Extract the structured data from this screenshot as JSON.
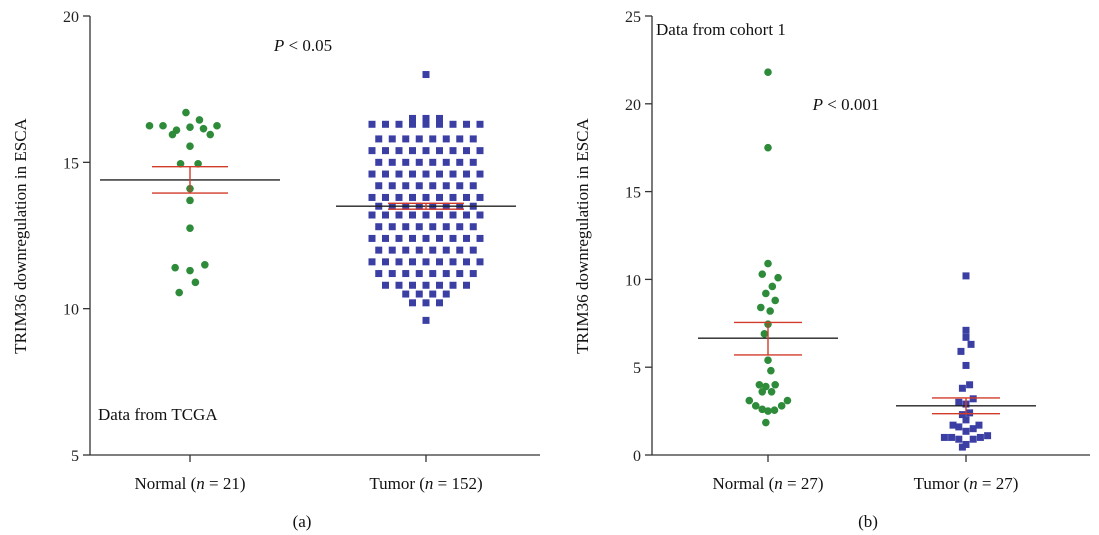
{
  "chart_data": [
    {
      "type": "scatter",
      "panel_label": "(a)",
      "ylabel": "TRIM36 downregulation in ESCA",
      "ylim": [
        5,
        20
      ],
      "yticks": [
        5,
        10,
        15,
        20
      ],
      "annotation": "Data from TCGA",
      "pvalue": {
        "symbol": "P",
        "rest": " < 0.05"
      },
      "groups": [
        {
          "label_name": "Normal",
          "label_n": "21",
          "color": "#2e8b3a",
          "marker": "circle",
          "mean": 14.4,
          "sem_low": 13.95,
          "sem_high": 14.85,
          "points": [
            [
              -0.3,
              16.25
            ],
            [
              -0.2,
              16.25
            ],
            [
              -0.1,
              16.1
            ],
            [
              0.0,
              16.2
            ],
            [
              0.1,
              16.15
            ],
            [
              0.2,
              16.25
            ],
            [
              -0.13,
              15.95
            ],
            [
              -0.03,
              16.7
            ],
            [
              0.07,
              16.45
            ],
            [
              0.15,
              15.95
            ],
            [
              0.0,
              15.55
            ],
            [
              -0.07,
              14.95
            ],
            [
              0.06,
              14.95
            ],
            [
              0.0,
              14.1
            ],
            [
              0.0,
              13.7
            ],
            [
              0.0,
              12.75
            ],
            [
              -0.11,
              11.4
            ],
            [
              0.0,
              11.3
            ],
            [
              0.11,
              11.5
            ],
            [
              -0.08,
              10.55
            ],
            [
              0.04,
              10.9
            ]
          ]
        },
        {
          "label_name": "Tumor",
          "label_n": "152",
          "color": "#3b3fa3",
          "marker": "square",
          "mean": 13.5,
          "sem_low": 13.4,
          "sem_high": 13.6,
          "points": [
            [
              0,
              18.0
            ],
            [
              -0.1,
              16.5
            ],
            [
              0.0,
              16.5
            ],
            [
              0.1,
              16.5
            ],
            [
              -0.4,
              16.3
            ],
            [
              -0.3,
              16.3
            ],
            [
              -0.2,
              16.3
            ],
            [
              -0.1,
              16.3
            ],
            [
              0.0,
              16.3
            ],
            [
              0.1,
              16.3
            ],
            [
              0.2,
              16.3
            ],
            [
              0.3,
              16.3
            ],
            [
              0.4,
              16.3
            ],
            [
              -0.35,
              15.8
            ],
            [
              -0.25,
              15.8
            ],
            [
              -0.15,
              15.8
            ],
            [
              -0.05,
              15.8
            ],
            [
              0.05,
              15.8
            ],
            [
              0.15,
              15.8
            ],
            [
              0.25,
              15.8
            ],
            [
              0.35,
              15.8
            ],
            [
              -0.4,
              15.4
            ],
            [
              -0.3,
              15.4
            ],
            [
              -0.2,
              15.4
            ],
            [
              -0.1,
              15.4
            ],
            [
              0.0,
              15.4
            ],
            [
              0.1,
              15.4
            ],
            [
              0.2,
              15.4
            ],
            [
              0.3,
              15.4
            ],
            [
              0.4,
              15.4
            ],
            [
              -0.35,
              15.0
            ],
            [
              -0.25,
              15.0
            ],
            [
              -0.15,
              15.0
            ],
            [
              -0.05,
              15.0
            ],
            [
              0.05,
              15.0
            ],
            [
              0.15,
              15.0
            ],
            [
              0.25,
              15.0
            ],
            [
              0.35,
              15.0
            ],
            [
              -0.4,
              14.6
            ],
            [
              -0.3,
              14.6
            ],
            [
              -0.2,
              14.6
            ],
            [
              -0.1,
              14.6
            ],
            [
              0.0,
              14.6
            ],
            [
              0.1,
              14.6
            ],
            [
              0.2,
              14.6
            ],
            [
              0.3,
              14.6
            ],
            [
              0.4,
              14.6
            ],
            [
              -0.35,
              14.2
            ],
            [
              -0.25,
              14.2
            ],
            [
              -0.15,
              14.2
            ],
            [
              -0.05,
              14.2
            ],
            [
              0.05,
              14.2
            ],
            [
              0.15,
              14.2
            ],
            [
              0.25,
              14.2
            ],
            [
              0.35,
              14.2
            ],
            [
              -0.4,
              13.8
            ],
            [
              -0.3,
              13.8
            ],
            [
              -0.2,
              13.8
            ],
            [
              -0.1,
              13.8
            ],
            [
              0.0,
              13.8
            ],
            [
              0.1,
              13.8
            ],
            [
              0.2,
              13.8
            ],
            [
              0.3,
              13.8
            ],
            [
              0.4,
              13.8
            ],
            [
              -0.35,
              13.5
            ],
            [
              -0.25,
              13.5
            ],
            [
              -0.15,
              13.5
            ],
            [
              -0.05,
              13.5
            ],
            [
              0.05,
              13.5
            ],
            [
              0.15,
              13.5
            ],
            [
              0.25,
              13.5
            ],
            [
              0.35,
              13.5
            ],
            [
              -0.4,
              13.2
            ],
            [
              -0.3,
              13.2
            ],
            [
              -0.2,
              13.2
            ],
            [
              -0.1,
              13.2
            ],
            [
              0.0,
              13.2
            ],
            [
              0.1,
              13.2
            ],
            [
              0.2,
              13.2
            ],
            [
              0.3,
              13.2
            ],
            [
              0.4,
              13.2
            ],
            [
              -0.35,
              12.8
            ],
            [
              -0.25,
              12.8
            ],
            [
              -0.15,
              12.8
            ],
            [
              -0.05,
              12.8
            ],
            [
              0.05,
              12.8
            ],
            [
              0.15,
              12.8
            ],
            [
              0.25,
              12.8
            ],
            [
              0.35,
              12.8
            ],
            [
              -0.4,
              12.4
            ],
            [
              -0.3,
              12.4
            ],
            [
              -0.2,
              12.4
            ],
            [
              -0.1,
              12.4
            ],
            [
              0.0,
              12.4
            ],
            [
              0.1,
              12.4
            ],
            [
              0.2,
              12.4
            ],
            [
              0.3,
              12.4
            ],
            [
              0.4,
              12.4
            ],
            [
              -0.35,
              12.0
            ],
            [
              -0.25,
              12.0
            ],
            [
              -0.15,
              12.0
            ],
            [
              -0.05,
              12.0
            ],
            [
              0.05,
              12.0
            ],
            [
              0.15,
              12.0
            ],
            [
              0.25,
              12.0
            ],
            [
              0.35,
              12.0
            ],
            [
              -0.4,
              11.6
            ],
            [
              -0.3,
              11.6
            ],
            [
              -0.2,
              11.6
            ],
            [
              -0.1,
              11.6
            ],
            [
              0.0,
              11.6
            ],
            [
              0.1,
              11.6
            ],
            [
              0.2,
              11.6
            ],
            [
              0.3,
              11.6
            ],
            [
              0.4,
              11.6
            ],
            [
              -0.35,
              11.2
            ],
            [
              -0.25,
              11.2
            ],
            [
              -0.15,
              11.2
            ],
            [
              -0.05,
              11.2
            ],
            [
              0.05,
              11.2
            ],
            [
              0.15,
              11.2
            ],
            [
              0.25,
              11.2
            ],
            [
              0.35,
              11.2
            ],
            [
              -0.3,
              10.8
            ],
            [
              -0.2,
              10.8
            ],
            [
              -0.1,
              10.8
            ],
            [
              0.0,
              10.8
            ],
            [
              0.1,
              10.8
            ],
            [
              0.2,
              10.8
            ],
            [
              0.3,
              10.8
            ],
            [
              -0.15,
              10.5
            ],
            [
              -0.05,
              10.5
            ],
            [
              0.05,
              10.5
            ],
            [
              0.15,
              10.5
            ],
            [
              -0.1,
              10.2
            ],
            [
              0.0,
              10.2
            ],
            [
              0.1,
              10.2
            ],
            [
              0.0,
              9.6
            ]
          ]
        }
      ]
    },
    {
      "type": "scatter",
      "panel_label": "(b)",
      "ylabel": "TRIM36 downregulation in ESCA",
      "ylim": [
        0,
        25
      ],
      "yticks": [
        0,
        5,
        10,
        15,
        20,
        25
      ],
      "annotation": "Data from cohort 1",
      "pvalue": {
        "symbol": "P",
        "rest": " < 0.001"
      },
      "groups": [
        {
          "label_name": "Normal",
          "label_n": "27",
          "color": "#2e8b3a",
          "marker": "circle",
          "mean": 6.65,
          "sem_low": 5.7,
          "sem_high": 7.55,
          "points": [
            [
              0.0,
              21.8
            ],
            [
              0.0,
              17.5
            ],
            [
              0.0,
              10.9
            ],
            [
              -0.08,
              10.3
            ],
            [
              0.14,
              10.1
            ],
            [
              0.06,
              9.6
            ],
            [
              -0.03,
              9.2
            ],
            [
              0.1,
              8.8
            ],
            [
              -0.1,
              8.4
            ],
            [
              0.03,
              8.2
            ],
            [
              0.0,
              7.45
            ],
            [
              -0.05,
              6.9
            ],
            [
              0.0,
              5.4
            ],
            [
              0.04,
              4.8
            ],
            [
              -0.12,
              4.0
            ],
            [
              0.1,
              4.0
            ],
            [
              -0.03,
              3.9
            ],
            [
              -0.08,
              3.6
            ],
            [
              0.05,
              3.6
            ],
            [
              -0.26,
              3.1
            ],
            [
              0.27,
              3.1
            ],
            [
              -0.17,
              2.8
            ],
            [
              0.19,
              2.8
            ],
            [
              -0.08,
              2.6
            ],
            [
              0.0,
              2.5
            ],
            [
              0.09,
              2.55
            ],
            [
              -0.03,
              1.85
            ]
          ]
        },
        {
          "label_name": "Tumor",
          "label_n": "27",
          "color": "#3b3fa3",
          "marker": "square",
          "mean": 2.8,
          "sem_low": 2.35,
          "sem_high": 3.25,
          "points": [
            [
              0.0,
              10.2
            ],
            [
              0.0,
              7.1
            ],
            [
              0.0,
              6.7
            ],
            [
              0.07,
              6.3
            ],
            [
              -0.07,
              5.9
            ],
            [
              0.0,
              5.1
            ],
            [
              0.05,
              4.0
            ],
            [
              -0.05,
              3.8
            ],
            [
              0.1,
              3.2
            ],
            [
              -0.1,
              3.0
            ],
            [
              0.0,
              2.9
            ],
            [
              0.05,
              2.4
            ],
            [
              -0.05,
              2.3
            ],
            [
              0.0,
              2.0
            ],
            [
              -0.18,
              1.7
            ],
            [
              0.18,
              1.7
            ],
            [
              -0.1,
              1.6
            ],
            [
              0.1,
              1.5
            ],
            [
              0.0,
              1.35
            ],
            [
              -0.3,
              1.0
            ],
            [
              -0.2,
              1.0
            ],
            [
              0.2,
              1.0
            ],
            [
              0.3,
              1.1
            ],
            [
              -0.1,
              0.9
            ],
            [
              0.1,
              0.9
            ],
            [
              0.0,
              0.6
            ],
            [
              -0.05,
              0.45
            ]
          ]
        }
      ]
    }
  ]
}
